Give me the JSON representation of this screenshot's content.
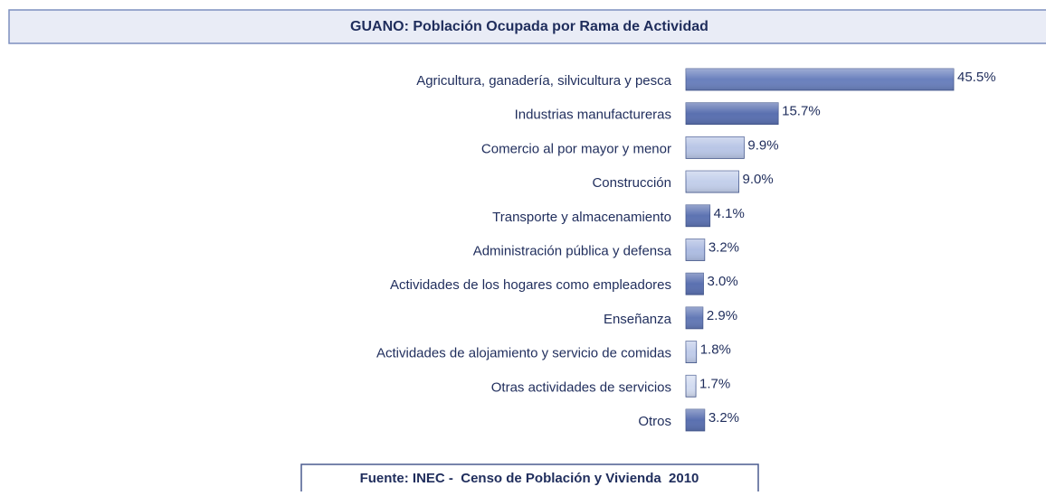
{
  "chart_data": {
    "type": "bar",
    "orientation": "horizontal",
    "title": "GUANO: Población Ocupada por Rama de Actividad",
    "categories": [
      "Agricultura, ganadería, silvicultura y pesca",
      "Industrias manufactureras",
      "Comercio al por mayor y menor",
      "Construcción",
      "Transporte y almacenamiento",
      "Administración pública y defensa",
      "Actividades de los hogares como empleadores",
      "Enseñanza",
      "Actividades de alojamiento y servicio de comidas",
      "Otras actividades de servicios",
      "Otros"
    ],
    "values": [
      45.5,
      15.7,
      9.9,
      9.0,
      4.1,
      3.2,
      3.0,
      2.9,
      1.8,
      1.7,
      3.2
    ],
    "value_labels": [
      "45.5%",
      "15.7%",
      "9.9%",
      "9.0%",
      "4.1%",
      "3.2%",
      "3.0%",
      "2.9%",
      "1.8%",
      "1.7%",
      "3.2%"
    ],
    "colors": [
      "#6a80bd",
      "#5a70b0",
      "#b9c6e6",
      "#c3cfeb",
      "#5d73b2",
      "#aebde2",
      "#5a70b0",
      "#6379b6",
      "#c1cdea",
      "#d3dcf1",
      "#5a70b0"
    ],
    "source": "Fuente: INEC -  Censo de Población y Vivienda  2010"
  }
}
